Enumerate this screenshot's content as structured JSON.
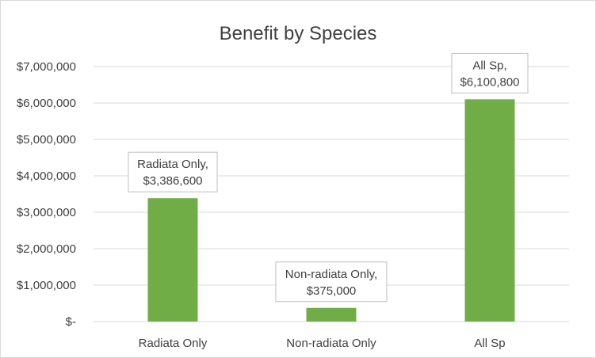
{
  "chart_data": {
    "type": "bar",
    "title": "Benefit by Species",
    "xlabel": "",
    "ylabel": "",
    "categories": [
      "Radiata Only",
      "Non-radiata Only",
      "All Sp"
    ],
    "values": [
      3386600,
      375000,
      6100800
    ],
    "data_labels": [
      [
        "Radiata Only,",
        "$3,386,600"
      ],
      [
        "Non-radiata Only,",
        "$375,000"
      ],
      [
        "All Sp,",
        "$6,100,800"
      ]
    ],
    "ylim": [
      0,
      7000000
    ],
    "y_ticks": [
      0,
      1000000,
      2000000,
      3000000,
      4000000,
      5000000,
      6000000,
      7000000
    ],
    "y_tick_labels": [
      "$-",
      "$1,000,000",
      "$2,000,000",
      "$3,000,000",
      "$4,000,000",
      "$5,000,000",
      "$6,000,000",
      "$7,000,000"
    ],
    "grid": true,
    "legend": "none",
    "colors": {
      "bar": "#70ad47",
      "grid": "#d9d9d9",
      "text": "#404040",
      "label_border": "#bfbfbf"
    }
  }
}
